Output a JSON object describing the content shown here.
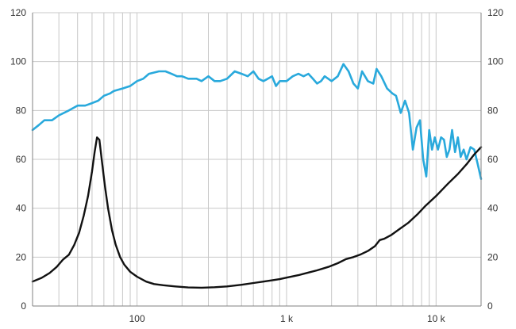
{
  "chart_data": {
    "type": "line",
    "title": "",
    "xlabel": "",
    "ylabel": "",
    "x_scale": "log",
    "xlim": [
      20,
      20000
    ],
    "ylim": [
      0,
      120
    ],
    "y_ticks": [
      0,
      20,
      40,
      60,
      80,
      100,
      120
    ],
    "y_tick_labels": [
      "0",
      "20",
      "40",
      "60",
      "80",
      "100",
      "120"
    ],
    "x_ticks": [
      100,
      1000,
      10000
    ],
    "x_tick_labels": [
      "100",
      "1 k",
      "10 k"
    ],
    "grid": true,
    "colors": {
      "grid": "#c8c8c8",
      "axis": "#808080",
      "text": "#333333"
    },
    "series": [
      {
        "color": "#29a9dc",
        "points": [
          [
            20,
            72
          ],
          [
            22,
            74
          ],
          [
            24,
            76
          ],
          [
            27,
            76
          ],
          [
            30,
            78
          ],
          [
            35,
            80
          ],
          [
            40,
            82
          ],
          [
            45,
            82
          ],
          [
            50,
            83
          ],
          [
            55,
            84
          ],
          [
            60,
            86
          ],
          [
            66,
            87
          ],
          [
            70,
            88
          ],
          [
            80,
            89
          ],
          [
            90,
            90
          ],
          [
            100,
            92
          ],
          [
            110,
            93
          ],
          [
            120,
            95
          ],
          [
            140,
            96
          ],
          [
            155,
            96
          ],
          [
            170,
            95
          ],
          [
            185,
            94
          ],
          [
            200,
            94
          ],
          [
            220,
            93
          ],
          [
            250,
            93
          ],
          [
            270,
            92
          ],
          [
            300,
            94
          ],
          [
            330,
            92
          ],
          [
            360,
            92
          ],
          [
            400,
            93
          ],
          [
            450,
            96
          ],
          [
            500,
            95
          ],
          [
            550,
            94
          ],
          [
            600,
            96
          ],
          [
            650,
            93
          ],
          [
            700,
            92
          ],
          [
            750,
            93
          ],
          [
            800,
            94
          ],
          [
            850,
            90
          ],
          [
            900,
            92
          ],
          [
            1000,
            92
          ],
          [
            1100,
            94
          ],
          [
            1200,
            95
          ],
          [
            1300,
            94
          ],
          [
            1400,
            95
          ],
          [
            1500,
            93
          ],
          [
            1600,
            91
          ],
          [
            1700,
            92
          ],
          [
            1800,
            94
          ],
          [
            2000,
            92
          ],
          [
            2200,
            94
          ],
          [
            2400,
            99
          ],
          [
            2600,
            96
          ],
          [
            2800,
            91
          ],
          [
            3000,
            89
          ],
          [
            3200,
            96
          ],
          [
            3500,
            92
          ],
          [
            3800,
            91
          ],
          [
            4000,
            97
          ],
          [
            4300,
            94
          ],
          [
            4700,
            89
          ],
          [
            5100,
            87
          ],
          [
            5400,
            86
          ],
          [
            5800,
            79
          ],
          [
            6200,
            84
          ],
          [
            6600,
            79
          ],
          [
            7000,
            64
          ],
          [
            7400,
            73
          ],
          [
            7800,
            76
          ],
          [
            8200,
            60
          ],
          [
            8600,
            53
          ],
          [
            9000,
            72
          ],
          [
            9400,
            64
          ],
          [
            9800,
            69
          ],
          [
            10300,
            64
          ],
          [
            10800,
            69
          ],
          [
            11300,
            68
          ],
          [
            11800,
            61
          ],
          [
            12300,
            64
          ],
          [
            12800,
            72
          ],
          [
            13400,
            63
          ],
          [
            14000,
            69
          ],
          [
            14600,
            61
          ],
          [
            15300,
            64
          ],
          [
            16000,
            60
          ],
          [
            17000,
            65
          ],
          [
            18000,
            64
          ],
          [
            19000,
            58
          ],
          [
            20000,
            52
          ]
        ]
      },
      {
        "color": "#111111",
        "points": [
          [
            20,
            10
          ],
          [
            23,
            11.5
          ],
          [
            26,
            13.5
          ],
          [
            29,
            16
          ],
          [
            32,
            19
          ],
          [
            35,
            21
          ],
          [
            38,
            25
          ],
          [
            41,
            30
          ],
          [
            44,
            37
          ],
          [
            47,
            45
          ],
          [
            50,
            55
          ],
          [
            52,
            63
          ],
          [
            54,
            69
          ],
          [
            56,
            68
          ],
          [
            58,
            60
          ],
          [
            61,
            49
          ],
          [
            64,
            40
          ],
          [
            68,
            31
          ],
          [
            72,
            25
          ],
          [
            77,
            20
          ],
          [
            82,
            17
          ],
          [
            90,
            14
          ],
          [
            100,
            12
          ],
          [
            115,
            10
          ],
          [
            130,
            9
          ],
          [
            150,
            8.5
          ],
          [
            180,
            8
          ],
          [
            220,
            7.6
          ],
          [
            270,
            7.5
          ],
          [
            330,
            7.7
          ],
          [
            400,
            8
          ],
          [
            500,
            8.7
          ],
          [
            600,
            9.4
          ],
          [
            700,
            10
          ],
          [
            800,
            10.5
          ],
          [
            900,
            11
          ],
          [
            1000,
            11.6
          ],
          [
            1200,
            12.6
          ],
          [
            1400,
            13.7
          ],
          [
            1600,
            14.6
          ],
          [
            1900,
            16
          ],
          [
            2200,
            17.5
          ],
          [
            2500,
            19.2
          ],
          [
            2800,
            20
          ],
          [
            3100,
            21
          ],
          [
            3500,
            22.5
          ],
          [
            3900,
            24.5
          ],
          [
            4200,
            27
          ],
          [
            4500,
            27.5
          ],
          [
            5000,
            29
          ],
          [
            5700,
            31.5
          ],
          [
            6500,
            34
          ],
          [
            7500,
            37.5
          ],
          [
            8500,
            41
          ],
          [
            10000,
            45
          ],
          [
            12000,
            50
          ],
          [
            14000,
            54
          ],
          [
            16000,
            58
          ],
          [
            18000,
            62
          ],
          [
            20000,
            65
          ]
        ]
      }
    ]
  }
}
